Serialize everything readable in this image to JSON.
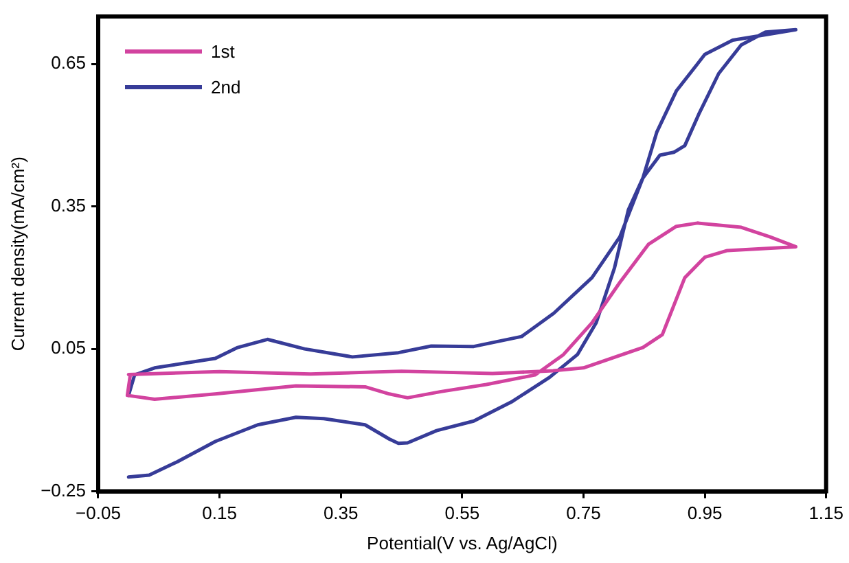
{
  "chart_data": {
    "type": "line",
    "xlabel": "Potential(V vs. Ag/AgCl)",
    "ylabel": "Current density(mA/cm²)",
    "xlim": [
      -0.05,
      1.15
    ],
    "xticks": [
      {
        "value": -0.05,
        "label": "−0.05"
      },
      0.15,
      0.35,
      0.55,
      0.75,
      0.95,
      1.15
    ],
    "ylim": [
      -0.25,
      0.75
    ],
    "yticks": [
      {
        "value": -0.25,
        "label": "−0.25"
      },
      0.05,
      0.35,
      0.65
    ],
    "grid": false,
    "legend": "top left",
    "marker": "none",
    "line_style": "solid",
    "series": [
      {
        "name": "1st",
        "color": "#d2439f",
        "x": [
          0.0,
          0.15,
          0.3,
          0.45,
          0.6,
          0.7,
          0.75,
          0.848,
          0.88,
          0.917,
          0.95,
          0.987,
          1.1,
          1.057,
          1.01,
          0.938,
          0.903,
          0.857,
          0.81,
          0.764,
          0.717,
          0.67,
          0.59,
          0.515,
          0.46,
          0.43,
          0.39,
          0.276,
          0.143,
          0.043,
          -0.002,
          0.003
        ],
        "values": [
          -0.004,
          0.002,
          -0.003,
          0.003,
          -0.002,
          0.004,
          0.01,
          0.053,
          0.08,
          0.2,
          0.243,
          0.257,
          0.265,
          0.286,
          0.306,
          0.315,
          0.308,
          0.27,
          0.19,
          0.105,
          0.038,
          -0.005,
          -0.025,
          -0.04,
          -0.053,
          -0.045,
          -0.03,
          -0.028,
          -0.045,
          -0.056,
          -0.048,
          -0.004
        ]
      },
      {
        "name": "2nd",
        "color": "#373c98",
        "x": [
          0.0,
          0.01,
          0.043,
          0.143,
          0.18,
          0.229,
          0.29,
          0.369,
          0.445,
          0.499,
          0.569,
          0.648,
          0.701,
          0.764,
          0.81,
          0.848,
          0.871,
          0.903,
          0.95,
          0.996,
          1.1,
          1.05,
          1.01,
          0.973,
          0.94,
          0.917,
          0.899,
          0.876,
          0.848,
          0.824,
          0.801,
          0.771,
          0.74,
          0.694,
          0.631,
          0.569,
          0.508,
          0.46,
          0.445,
          0.43,
          0.39,
          0.322,
          0.276,
          0.213,
          0.143,
          0.08,
          0.034,
          0.0
        ],
        "values": [
          -0.048,
          -0.005,
          0.01,
          0.03,
          0.053,
          0.07,
          0.05,
          0.033,
          0.042,
          0.056,
          0.055,
          0.076,
          0.125,
          0.2,
          0.286,
          0.41,
          0.507,
          0.593,
          0.67,
          0.7,
          0.722,
          0.717,
          0.69,
          0.63,
          0.544,
          0.478,
          0.464,
          0.458,
          0.41,
          0.343,
          0.22,
          0.105,
          0.038,
          -0.01,
          -0.062,
          -0.102,
          -0.122,
          -0.148,
          -0.149,
          -0.14,
          -0.11,
          -0.097,
          -0.094,
          -0.11,
          -0.145,
          -0.188,
          -0.216,
          -0.22
        ]
      }
    ]
  }
}
